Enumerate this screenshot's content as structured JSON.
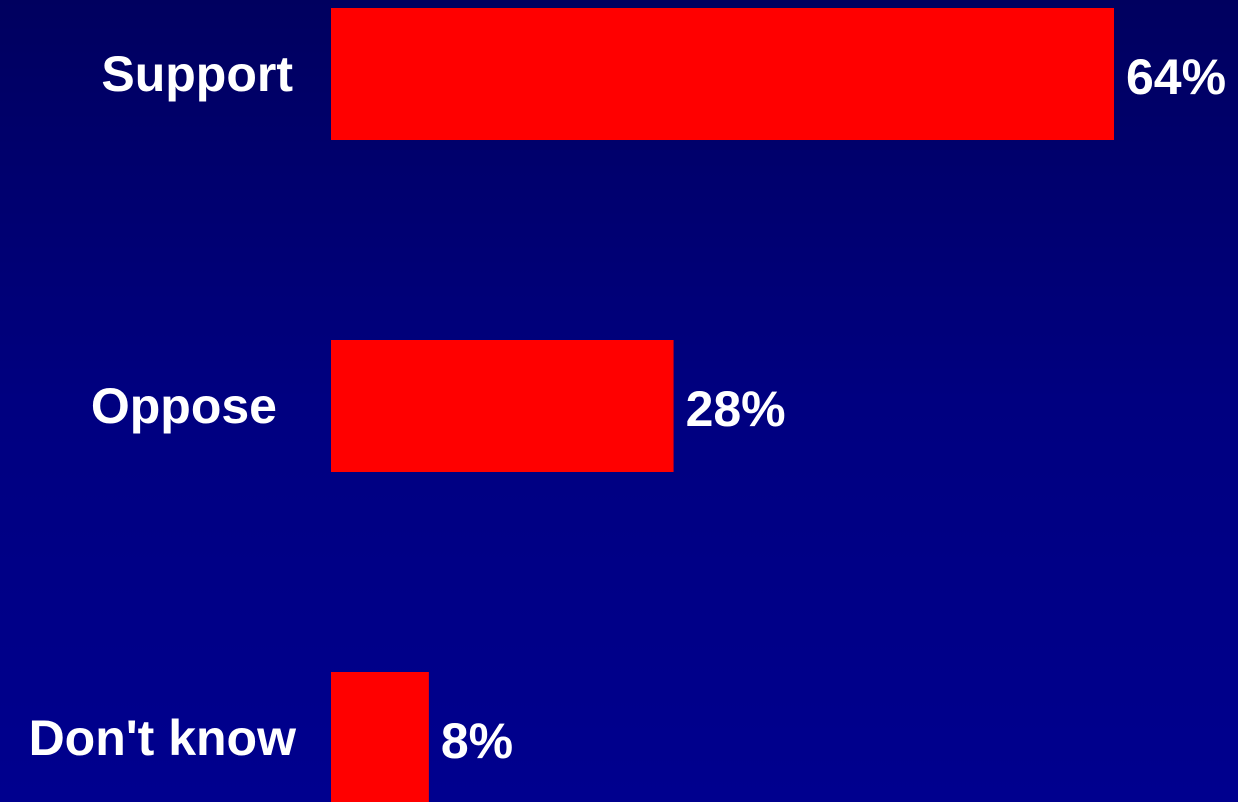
{
  "chart_data": {
    "type": "bar",
    "orientation": "horizontal",
    "categories": [
      "Support",
      "Oppose",
      "Don't know"
    ],
    "values": [
      64,
      28,
      8
    ],
    "value_labels": [
      "64%",
      "28%",
      "8%"
    ],
    "title": "",
    "xlabel": "",
    "ylabel": "",
    "xlim": [
      0,
      64
    ],
    "grid": false,
    "legend": "none",
    "bar_color": "#ff0000",
    "text_color": "#ffffff",
    "background_top_color": "#00005f",
    "background_bottom_color": "#00008e"
  }
}
